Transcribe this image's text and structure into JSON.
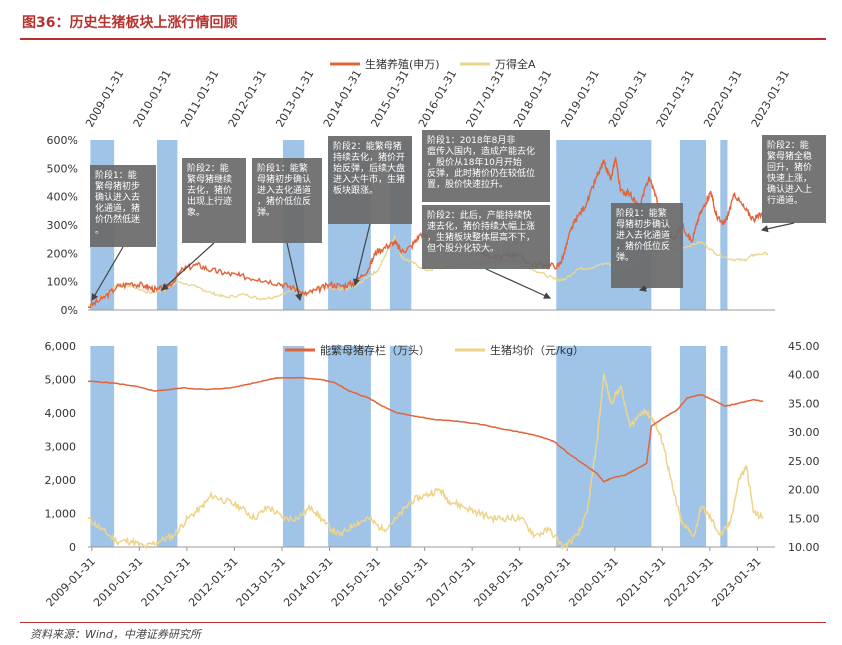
{
  "title": "图36：历史生猪板块上涨行情回顾",
  "source": "资料来源：Wind，中港证券研究所",
  "colors": {
    "index_line": "#e2643a",
    "market_line": "#e8d68f",
    "sow_line": "#e2643a",
    "price_line": "#edd48a",
    "band": "#9fc4e8",
    "note_bg": "#6b6b6b",
    "arrow": "#444444"
  },
  "chart_data": [
    {
      "type": "line",
      "name": "top",
      "legend": [
        "生猪养殖(申万)",
        "万得全A"
      ],
      "yticks": [
        "0%",
        "100%",
        "200%",
        "300%",
        "400%",
        "500%",
        "600%"
      ],
      "ylim": [
        0,
        600
      ],
      "dates_top": [
        "2009-01-31",
        "2010-01-31",
        "2011-01-31",
        "2012-01-31",
        "2013-01-31",
        "2014-01-31",
        "2015-01-31",
        "2016-01-31",
        "2017-01-31",
        "2018-01-31",
        "2019-01-31",
        "2020-01-31",
        "2021-01-31",
        "2022-01-31",
        "2023-01-31"
      ],
      "series": [
        {
          "name": "生猪养殖(申万)",
          "t": [
            2009.0,
            2009.3,
            2009.6,
            2009.9,
            2010.2,
            2010.45,
            2010.7,
            2011.0,
            2011.3,
            2011.6,
            2011.9,
            2012.2,
            2012.6,
            2013.0,
            2013.3,
            2013.55,
            2013.8,
            2014.1,
            2014.35,
            2014.6,
            2014.9,
            2015.05,
            2015.3,
            2015.45,
            2015.6,
            2015.8,
            2016.0,
            2016.3,
            2016.6,
            2016.9,
            2017.2,
            2017.5,
            2017.8,
            2018.0,
            2018.3,
            2018.6,
            2018.9,
            2019.0,
            2019.15,
            2019.3,
            2019.5,
            2019.7,
            2019.85,
            2020.0,
            2020.1,
            2020.2,
            2020.4,
            2020.6,
            2020.8,
            2020.95,
            2021.1,
            2021.3,
            2021.5,
            2021.7,
            2021.85,
            2022.0,
            2022.1,
            2022.2,
            2022.35,
            2022.45,
            2022.6,
            2022.8,
            2023.0,
            2023.2
          ],
          "v": [
            10,
            40,
            80,
            95,
            85,
            70,
            85,
            145,
            160,
            140,
            130,
            120,
            110,
            95,
            80,
            55,
            70,
            90,
            85,
            95,
            145,
            205,
            225,
            240,
            205,
            225,
            270,
            240,
            220,
            225,
            210,
            185,
            190,
            200,
            165,
            160,
            155,
            190,
            280,
            330,
            380,
            470,
            520,
            460,
            540,
            420,
            410,
            360,
            470,
            400,
            310,
            250,
            300,
            240,
            330,
            380,
            420,
            340,
            300,
            330,
            410,
            360,
            320,
            340
          ]
        },
        {
          "name": "万得全A",
          "t": [
            2009.0,
            2009.4,
            2009.6,
            2009.9,
            2010.3,
            2010.6,
            2010.9,
            2011.3,
            2011.6,
            2011.9,
            2012.3,
            2012.6,
            2012.9,
            2013.3,
            2013.6,
            2013.9,
            2014.3,
            2014.6,
            2014.9,
            2015.1,
            2015.3,
            2015.45,
            2015.6,
            2015.8,
            2016.1,
            2016.5,
            2016.9,
            2017.3,
            2017.7,
            2018.0,
            2018.4,
            2018.8,
            2019.0,
            2019.3,
            2019.6,
            2019.9,
            2020.2,
            2020.5,
            2020.8,
            2021.1,
            2021.5,
            2021.9,
            2022.2,
            2022.5,
            2022.8,
            2023.0,
            2023.3
          ],
          "v": [
            10,
            60,
            90,
            85,
            60,
            70,
            100,
            80,
            60,
            45,
            55,
            40,
            45,
            70,
            60,
            80,
            70,
            80,
            120,
            140,
            210,
            260,
            185,
            170,
            140,
            150,
            160,
            165,
            175,
            175,
            140,
            110,
            105,
            145,
            150,
            165,
            150,
            170,
            200,
            215,
            220,
            240,
            200,
            180,
            175,
            195,
            200
          ]
        }
      ],
      "notes": [
        "阶段1：能繁母猪初步确认进入去化通道，猪价仍然低迷。",
        "阶段2：能繁母猪继续去化，猪价出现上行迹象。",
        "阶段1：能繁母猪初步确认进入去化通道，猪价低位反弹。",
        "阶段2：能繁母猪持续去化，猪价开始反弹，后续大盘进入大牛市，生猪板块跟涨。",
        "阶段1：2018年8月非瘟传入国内，造成产能去化，股价从18年10月开始反弹，此时猪价仍在较低位置，股价快速拉升。",
        "阶段2：此后，产能持续快速去化，猪价持续大幅上涨，生猪板块整体层高不下，但个股分化较大。",
        "阶段1：能繁母猪初步确认进入去化通道，猪价低位反弹。",
        "阶段2：能繁母猪全稳回升，猪价快速上涨，确认进入上行通道。"
      ]
    },
    {
      "type": "line",
      "name": "bottom",
      "legend": [
        "能繁母猪存栏（万头）",
        "生猪均价（元/kg）"
      ],
      "yticks_left": [
        "0",
        "1,000",
        "2,000",
        "3,000",
        "4,000",
        "5,000",
        "6,000"
      ],
      "ylim_left": [
        0,
        6000
      ],
      "yticks_right": [
        "10.00",
        "15.00",
        "20.00",
        "25.00",
        "30.00",
        "35.00",
        "40.00",
        "45.00"
      ],
      "ylim_right": [
        10,
        45
      ],
      "dates_bottom": [
        "2009-01-31",
        "2010-01-31",
        "2011-01-31",
        "2012-01-31",
        "2013-01-31",
        "2014-01-31",
        "2015-01-31",
        "2016-01-31",
        "2017-01-31",
        "2018-01-31",
        "2019-01-31",
        "2020-01-31",
        "2021-01-31",
        "2022-01-31",
        "2023-01-31"
      ],
      "series": [
        {
          "name": "能繁母猪存栏（万头）",
          "axis": "left",
          "t": [
            2009.0,
            2009.5,
            2010.0,
            2010.4,
            2010.7,
            2011.0,
            2011.5,
            2012.0,
            2012.5,
            2012.8,
            2013.0,
            2013.5,
            2013.9,
            2014.2,
            2014.5,
            2014.9,
            2015.2,
            2015.5,
            2015.9,
            2016.3,
            2016.8,
            2017.3,
            2017.8,
            2018.2,
            2018.5,
            2018.8,
            2019.1,
            2019.4,
            2019.7,
            2019.85,
            2020.0,
            2020.3,
            2020.5,
            2020.75,
            2020.85,
            2021.1,
            2021.4,
            2021.6,
            2021.9,
            2022.2,
            2022.4,
            2022.7,
            2023.0,
            2023.2
          ],
          "v": [
            4950,
            4900,
            4800,
            4650,
            4700,
            4750,
            4700,
            4750,
            4900,
            5000,
            5050,
            5050,
            5000,
            4900,
            4650,
            4450,
            4200,
            4000,
            3900,
            3800,
            3750,
            3650,
            3500,
            3400,
            3300,
            3150,
            2800,
            2500,
            2200,
            1950,
            2050,
            2150,
            2300,
            2500,
            3600,
            3850,
            4100,
            4450,
            4550,
            4350,
            4200,
            4300,
            4400,
            4350
          ]
        },
        {
          "name": "生猪均价（元/kg）",
          "axis": "right",
          "t": [
            2009.0,
            2009.3,
            2009.6,
            2009.9,
            2010.2,
            2010.5,
            2010.8,
            2011.1,
            2011.4,
            2011.6,
            2011.9,
            2012.2,
            2012.5,
            2012.8,
            2013.1,
            2013.4,
            2013.7,
            2014.0,
            2014.3,
            2014.6,
            2014.9,
            2015.2,
            2015.5,
            2015.8,
            2016.1,
            2016.4,
            2016.6,
            2016.9,
            2017.2,
            2017.5,
            2017.8,
            2018.1,
            2018.4,
            2018.7,
            2019.0,
            2019.3,
            2019.5,
            2019.7,
            2019.85,
            2020.0,
            2020.2,
            2020.4,
            2020.7,
            2020.9,
            2021.1,
            2021.3,
            2021.5,
            2021.75,
            2021.9,
            2022.1,
            2022.3,
            2022.5,
            2022.7,
            2022.85,
            2023.0,
            2023.2
          ],
          "v": [
            15,
            13,
            11,
            11,
            10,
            11,
            12,
            15,
            17,
            19,
            18,
            17,
            15,
            17,
            15,
            15,
            17,
            14,
            12,
            14,
            15,
            13,
            15,
            18,
            19,
            20,
            18,
            17,
            16,
            15,
            15,
            15,
            12,
            13,
            10,
            12,
            16,
            28,
            40,
            35,
            38,
            31,
            34,
            32,
            28,
            20,
            14,
            12,
            17,
            15,
            12,
            14,
            22,
            24,
            16,
            15
          ]
        }
      ]
    }
  ]
}
